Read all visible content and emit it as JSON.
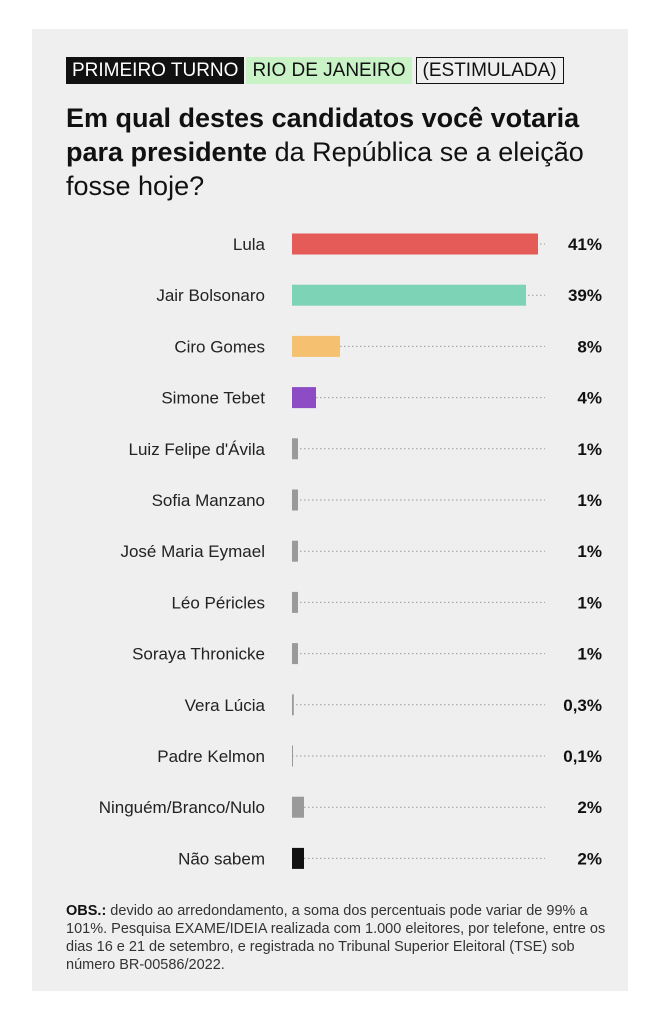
{
  "header": {
    "round_tag": "PRIMEIRO TURNO",
    "state_tag": "RIO DE JANEIRO",
    "type_tag": "(ESTIMULADA)"
  },
  "headline": {
    "bold": "Em qual destes candidatos você votaria para presidente",
    "regular": " da República se a eleição fosse hoje?"
  },
  "chart_data": {
    "type": "bar",
    "orientation": "horizontal",
    "xlim": [
      0,
      41
    ],
    "grid": false,
    "categories": [
      "Lula",
      "Jair Bolsonaro",
      "Ciro Gomes",
      "Simone Tebet",
      "Luiz Felipe d'Ávila",
      "Sofia Manzano",
      "José Maria Eymael",
      "Léo Péricles",
      "Soraya Thronicke",
      "Vera Lúcia",
      "Padre Kelmon",
      "Ninguém/Branco/Nulo",
      "Não sabem"
    ],
    "values": [
      41,
      39,
      8,
      4,
      1,
      1,
      1,
      1,
      1,
      0.3,
      0.1,
      2,
      2
    ],
    "value_labels": [
      "41%",
      "39%",
      "8%",
      "4%",
      "1%",
      "1%",
      "1%",
      "1%",
      "1%",
      "0,3%",
      "0,1%",
      "2%",
      "2%"
    ],
    "colors": [
      "#e55b57",
      "#7dd3b5",
      "#f5c06f",
      "#8d4cc4",
      "#9a9a9a",
      "#9a9a9a",
      "#9a9a9a",
      "#9a9a9a",
      "#9a9a9a",
      "#9a9a9a",
      "#9a9a9a",
      "#9a9a9a",
      "#111111"
    ]
  },
  "notes": {
    "obs_label": "OBS.:",
    "obs_text": " devido ao arredondamento, a soma dos percentuais pode variar de 99% a 101%. Pesquisa EXAME/IDEIA realizada com 1.000 eleitores, por telefone, entre os dias 16 e 21 de setembro, e registrada no Tribunal Superior Eleitoral (TSE) sob número BR-00586/2022."
  }
}
